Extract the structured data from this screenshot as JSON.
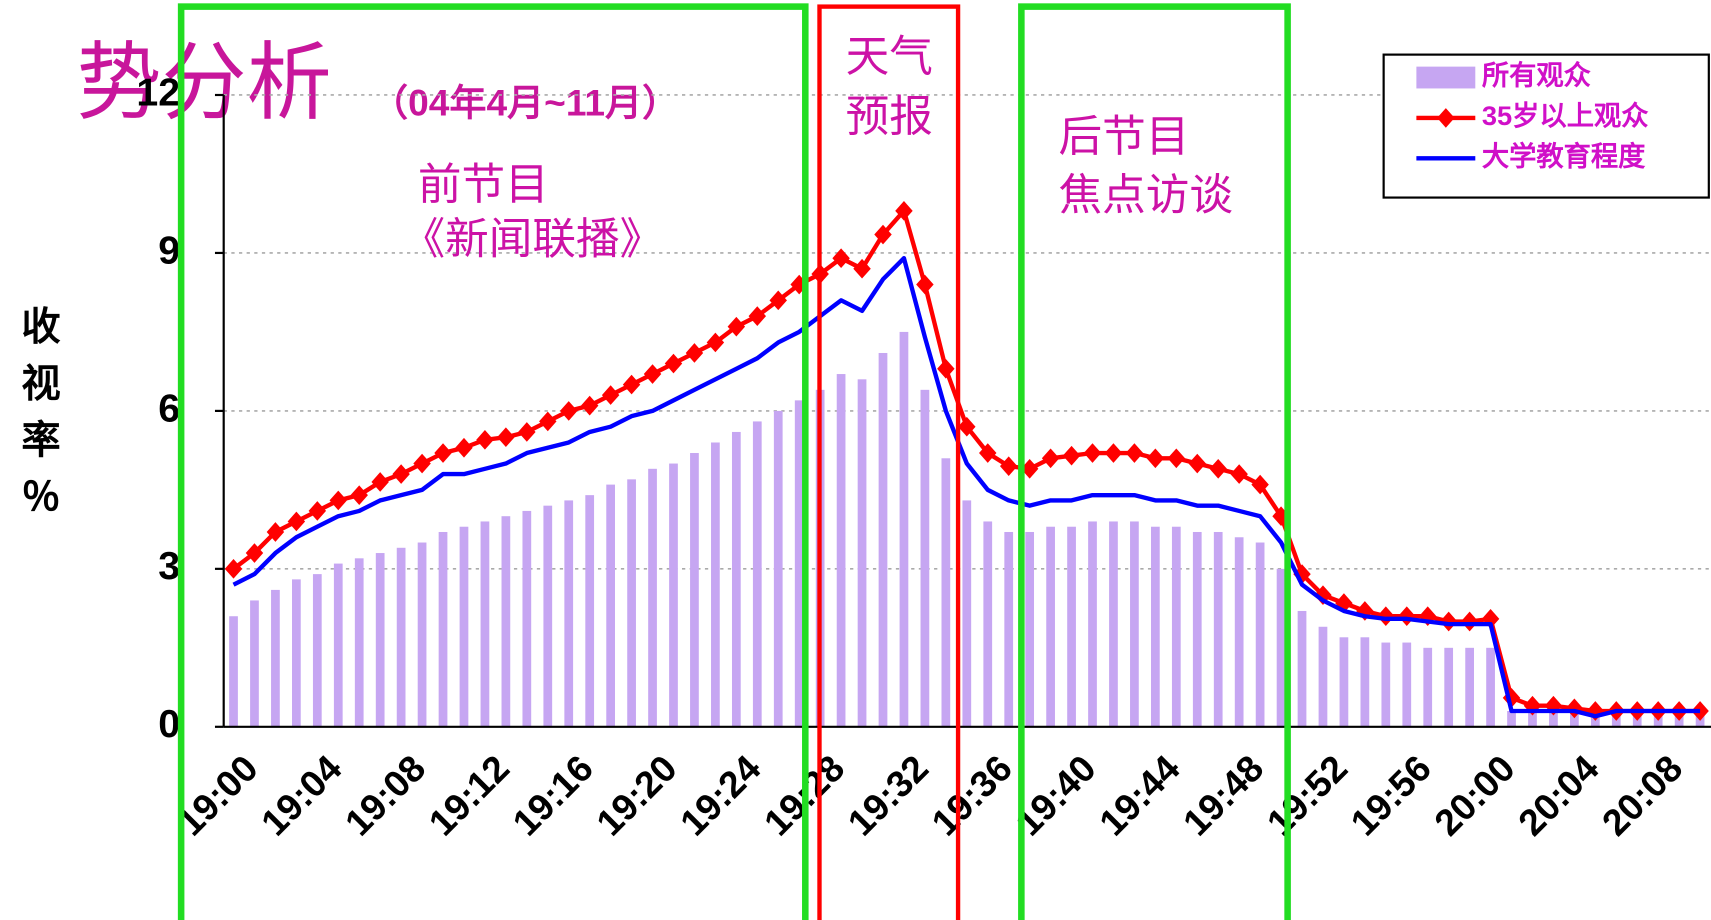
{
  "chart_data": {
    "type": "bar",
    "title": "势分析",
    "subtitle": "（04年4月~11月）",
    "ylabel": "收视率％",
    "annotations": [
      [
        "前节目",
        "《新闻联播》"
      ],
      [
        "天气",
        "预报"
      ],
      [
        "后节目",
        "焦点访谈"
      ]
    ],
    "categories": [
      "19:00",
      null,
      null,
      null,
      "19:04",
      null,
      null,
      null,
      "19:08",
      null,
      null,
      null,
      "19:12",
      null,
      null,
      null,
      "19:16",
      null,
      null,
      null,
      "19:20",
      null,
      null,
      null,
      "19:24",
      null,
      null,
      null,
      "19:28",
      null,
      null,
      null,
      "19:32",
      null,
      null,
      null,
      "19:36",
      null,
      null,
      null,
      "19:40",
      null,
      null,
      null,
      "19:44",
      null,
      null,
      null,
      "19:48",
      null,
      null,
      null,
      "19:52",
      null,
      null,
      null,
      "19:56",
      null,
      null,
      null,
      "20:00",
      null,
      null,
      null,
      "20:04",
      null,
      null,
      null,
      "20:08",
      null,
      null
    ],
    "series": [
      {
        "name": "所有观众",
        "type": "bar",
        "color": "#c6a6f2",
        "values": [
          2.1,
          2.4,
          2.6,
          2.8,
          2.9,
          3.1,
          3.2,
          3.3,
          3.4,
          3.5,
          3.7,
          3.8,
          3.9,
          4.0,
          4.1,
          4.2,
          4.3,
          4.4,
          4.6,
          4.7,
          4.9,
          5.0,
          5.2,
          5.4,
          5.6,
          5.8,
          6.0,
          6.2,
          6.4,
          6.7,
          6.6,
          7.1,
          7.5,
          6.4,
          5.1,
          4.3,
          3.9,
          3.7,
          3.7,
          3.8,
          3.8,
          3.9,
          3.9,
          3.9,
          3.8,
          3.8,
          3.7,
          3.7,
          3.6,
          3.5,
          3.0,
          2.2,
          1.9,
          1.7,
          1.7,
          1.6,
          1.6,
          1.5,
          1.5,
          1.5,
          1.5,
          0.3,
          0.3,
          0.3,
          0.3,
          0.3,
          0.3,
          0.3,
          0.3,
          0.3,
          0.3
        ]
      },
      {
        "name": "35岁以上观众",
        "type": "line",
        "marker": "diamond",
        "color": "#ff0000",
        "values": [
          3.0,
          3.3,
          3.7,
          3.9,
          4.1,
          4.3,
          4.4,
          4.65,
          4.8,
          5.0,
          5.2,
          5.3,
          5.45,
          5.5,
          5.6,
          5.8,
          6.0,
          6.1,
          6.3,
          6.5,
          6.7,
          6.9,
          7.1,
          7.3,
          7.6,
          7.8,
          8.1,
          8.4,
          8.6,
          8.9,
          8.7,
          9.35,
          9.8,
          8.4,
          6.8,
          5.7,
          5.2,
          4.95,
          4.9,
          5.1,
          5.15,
          5.2,
          5.2,
          5.2,
          5.1,
          5.1,
          5.0,
          4.9,
          4.8,
          4.6,
          4.0,
          2.9,
          2.5,
          2.35,
          2.2,
          2.1,
          2.1,
          2.1,
          2.0,
          2.0,
          2.05,
          0.55,
          0.4,
          0.4,
          0.35,
          0.3,
          0.3,
          0.3,
          0.3,
          0.3,
          0.3
        ]
      },
      {
        "name": "大学教育程度",
        "type": "line",
        "color": "#0000ff",
        "values": [
          2.7,
          2.9,
          3.3,
          3.6,
          3.8,
          4.0,
          4.1,
          4.3,
          4.4,
          4.5,
          4.8,
          4.8,
          4.9,
          5.0,
          5.2,
          5.3,
          5.4,
          5.6,
          5.7,
          5.9,
          6.0,
          6.2,
          6.4,
          6.6,
          6.8,
          7.0,
          7.3,
          7.5,
          7.8,
          8.1,
          7.9,
          8.5,
          8.9,
          7.4,
          6.0,
          5.0,
          4.5,
          4.3,
          4.2,
          4.3,
          4.3,
          4.4,
          4.4,
          4.4,
          4.3,
          4.3,
          4.2,
          4.2,
          4.1,
          4.0,
          3.5,
          2.7,
          2.4,
          2.2,
          2.1,
          2.05,
          2.05,
          2.0,
          1.95,
          1.95,
          1.95,
          0.3,
          0.3,
          0.3,
          0.3,
          0.2,
          0.3,
          0.3,
          0.3,
          0.3,
          0.3
        ]
      }
    ],
    "ylim": [
      0,
      12
    ],
    "yticks": [
      0,
      3,
      6,
      9,
      12
    ],
    "grid": true,
    "legend": "top-right"
  }
}
